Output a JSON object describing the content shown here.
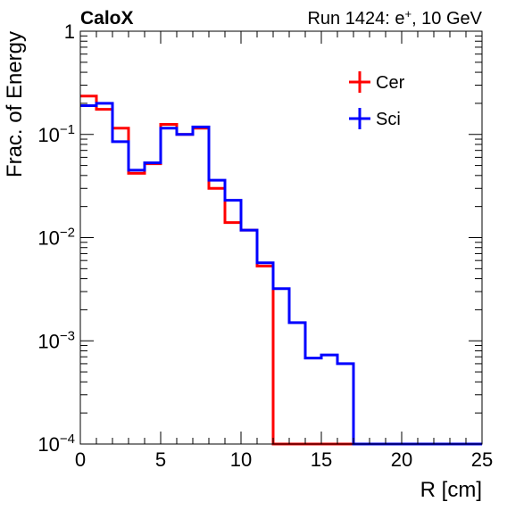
{
  "chart_data": {
    "type": "step-histogram",
    "corner_label_left": "CaloX",
    "corner_label_right_prefix": "Run 1424: e",
    "corner_label_right_sup": "+",
    "corner_label_right_suffix": ", 10 GeV",
    "xlabel": "R [cm]",
    "ylabel": "Frac. of Energy",
    "xlim": [
      0,
      25
    ],
    "ylim": [
      0.0001,
      1
    ],
    "yscale": "log",
    "bin_edges": [
      0,
      1,
      2,
      3,
      4,
      5,
      6,
      7,
      8,
      9,
      10,
      11,
      12,
      13,
      14,
      15,
      16,
      17,
      18,
      19,
      20,
      21,
      22,
      23,
      24,
      25
    ],
    "x_ticks": [
      {
        "value": 0,
        "label": "0"
      },
      {
        "value": 5,
        "label": "5"
      },
      {
        "value": 10,
        "label": "10"
      },
      {
        "value": 15,
        "label": "15"
      },
      {
        "value": 20,
        "label": "20"
      },
      {
        "value": 25,
        "label": "25"
      }
    ],
    "y_ticks": [
      {
        "value": 1,
        "base": "1",
        "exp": ""
      },
      {
        "value": 0.1,
        "base": "10",
        "exp": "−1"
      },
      {
        "value": 0.01,
        "base": "10",
        "exp": "−2"
      },
      {
        "value": 0.001,
        "base": "10",
        "exp": "−3"
      },
      {
        "value": 0.0001,
        "base": "10",
        "exp": "−4"
      }
    ],
    "legend_position": "top-right",
    "series": [
      {
        "name": "Cer",
        "color": "#ff0000",
        "values": [
          0.235,
          0.175,
          0.115,
          0.042,
          0.052,
          0.125,
          0.1,
          0.115,
          0.03,
          0.014,
          0.0118,
          0.0053,
          0,
          0,
          0,
          0,
          0,
          0,
          0,
          0,
          0,
          0,
          0,
          0,
          0
        ]
      },
      {
        "name": "Sci",
        "color": "#0000ff",
        "values": [
          0.19,
          0.2,
          0.085,
          0.045,
          0.053,
          0.115,
          0.1,
          0.118,
          0.036,
          0.023,
          0.0118,
          0.0057,
          0.0032,
          0.0015,
          0.00068,
          0.00073,
          0.0006,
          0,
          0,
          0,
          0,
          0,
          0,
          0,
          0
        ]
      }
    ]
  }
}
